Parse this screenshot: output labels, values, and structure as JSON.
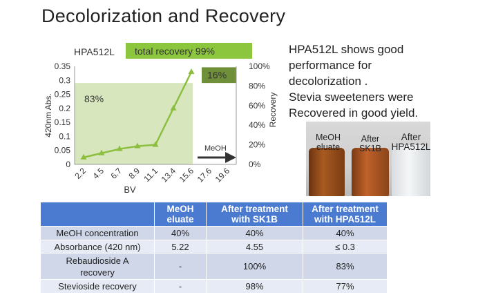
{
  "title": "Decolorization and Recovery",
  "chart_data": {
    "type": "line",
    "label": "HPA512L",
    "recovery_banner": "total recovery 99%",
    "x": [
      "2.2",
      "4.5",
      "6.7",
      "8.9",
      "11.1",
      "13.4",
      "15.6",
      "17.6",
      "19.6"
    ],
    "series": [
      {
        "values": [
          0.025,
          0.04,
          0.055,
          0.065,
          0.07,
          0.2,
          0.33,
          null,
          null
        ]
      }
    ],
    "ylabel": "420nm Abs.",
    "y2label": "Recovery",
    "xlabel": "BV",
    "ylim": [
      0,
      0.35
    ],
    "yticks": [
      "0",
      "0.05",
      "0.1",
      "0.15",
      "0.2",
      "0.25",
      "0.3",
      "0.35"
    ],
    "y2lim": [
      0,
      100
    ],
    "y2ticks": [
      "0%",
      "20%",
      "40%",
      "60%",
      "80%",
      "100%"
    ],
    "regions": [
      {
        "label": "83%",
        "x_from": "2.2",
        "x_to": "15.6",
        "recovery": 83
      },
      {
        "label": "16%",
        "x_from": "17.6",
        "x_to": "19.6",
        "recovery_from": 83,
        "recovery_to": 99
      }
    ],
    "arrow_label": "MeOH",
    "grid": false,
    "colors": {
      "line": "#8cbf3f",
      "fill": "#d7e6bd",
      "banner": "#8cc63f",
      "region2": "#6f8f3a",
      "arrow": "#333333"
    }
  },
  "description": [
    "HPA512L shows good",
    "performance for",
    "decolorization .",
    "Stevia sweeteners were",
    "Recovered in good yield."
  ],
  "photo_labels": [
    {
      "line1": "MeOH",
      "line2": "eluate"
    },
    {
      "line1": "After",
      "line2": "SK1B"
    },
    {
      "line1": "After",
      "line2": "HPA512L"
    }
  ],
  "table": {
    "headers": [
      {
        "line1": "",
        "line2": ""
      },
      {
        "line1": "MeOH",
        "line2": "eluate"
      },
      {
        "line1": "After treatment",
        "line2": "with SK1B"
      },
      {
        "line1": "After treatment",
        "line2": "with HPA512L"
      }
    ],
    "rows": [
      {
        "label": "MeOH concentration",
        "label2": "",
        "cells": [
          "40%",
          "40%",
          "40%"
        ]
      },
      {
        "label": "Absorbance (420 nm)",
        "label2": "",
        "cells": [
          "5.22",
          "4.55",
          "≤ 0.3"
        ]
      },
      {
        "label": "Rebaudioside A",
        "label2": "recovery",
        "cells": [
          "-",
          "100%",
          "83%"
        ]
      },
      {
        "label": "Stevioside recovery",
        "label2": "",
        "cells": [
          "-",
          "98%",
          "77%"
        ]
      }
    ]
  }
}
